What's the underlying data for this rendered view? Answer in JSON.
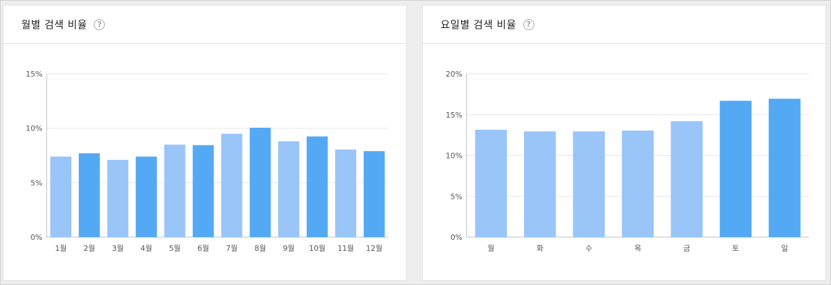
{
  "colors": {
    "light_bar": "#99c5f8",
    "dark_bar": "#54a9f4",
    "grid": "#e6e6e6",
    "axis": "#bdbdbd"
  },
  "monthly": {
    "title": "월별 검색 비율",
    "help_icon": "help-question-icon"
  },
  "weekday": {
    "title": "요일별 검색 비율",
    "help_icon": "help-question-icon"
  },
  "chart_data": [
    {
      "type": "bar",
      "title": "월별 검색 비율",
      "categories": [
        "1월",
        "2월",
        "3월",
        "4월",
        "5월",
        "6월",
        "7월",
        "8월",
        "9월",
        "10월",
        "11월",
        "12월"
      ],
      "values": [
        7.4,
        7.7,
        7.1,
        7.4,
        8.5,
        8.45,
        9.5,
        10.05,
        8.8,
        9.25,
        8.05,
        7.9
      ],
      "highlight": [
        false,
        true,
        false,
        true,
        false,
        true,
        false,
        true,
        false,
        true,
        false,
        true
      ],
      "yticks": [
        "0%",
        "5%",
        "10%",
        "15%"
      ],
      "ylim": [
        0,
        15
      ],
      "xlabel": "",
      "ylabel": "",
      "grid": true
    },
    {
      "type": "bar",
      "title": "요일별 검색 비율",
      "categories": [
        "월",
        "화",
        "수",
        "목",
        "금",
        "토",
        "일"
      ],
      "values": [
        13.15,
        12.95,
        12.95,
        13.05,
        14.2,
        16.7,
        16.95
      ],
      "highlight": [
        false,
        false,
        false,
        false,
        false,
        true,
        true
      ],
      "yticks": [
        "0%",
        "5%",
        "10%",
        "15%",
        "20%"
      ],
      "ylim": [
        0,
        20
      ],
      "xlabel": "",
      "ylabel": "",
      "grid": true
    }
  ]
}
